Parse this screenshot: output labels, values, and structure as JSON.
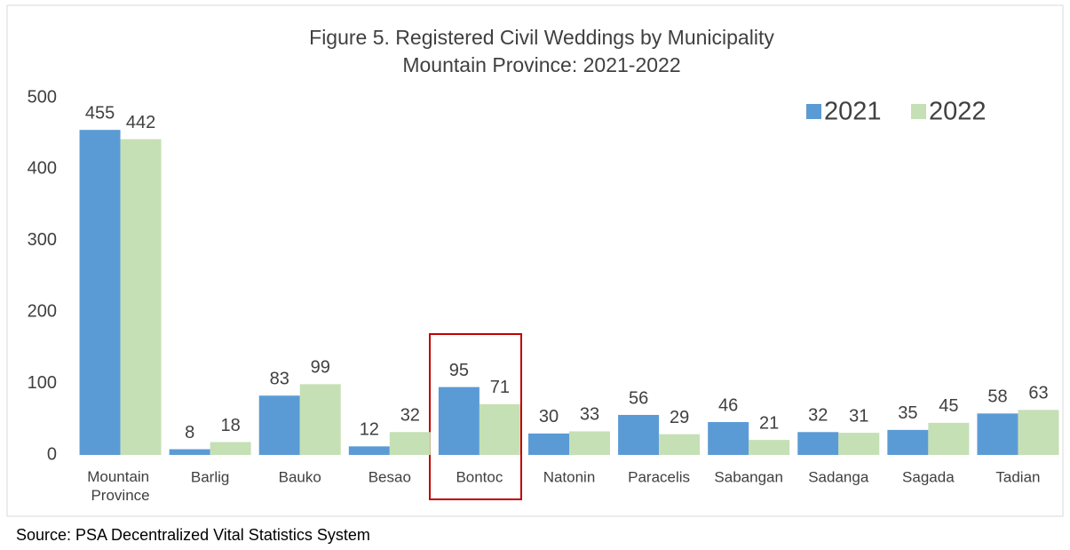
{
  "chart_data": {
    "type": "bar",
    "title": "Figure 5.  Registered Civil Weddings by Municipality",
    "subtitle": "Mountain Province: 2021-2022",
    "categories": [
      "Mountain Province",
      "Barlig",
      "Bauko",
      "Besao",
      "Bontoc",
      "Natonin",
      "Paracelis",
      "Sabangan",
      "Sadanga",
      "Sagada",
      "Tadian"
    ],
    "series": [
      {
        "name": "2021",
        "color": "#5b9bd5",
        "values": [
          455,
          8,
          83,
          12,
          95,
          30,
          56,
          46,
          32,
          35,
          58
        ]
      },
      {
        "name": "2022",
        "color": "#c5e0b4",
        "values": [
          442,
          18,
          99,
          32,
          71,
          33,
          29,
          21,
          31,
          45,
          63
        ]
      }
    ],
    "ylim": [
      0,
      500
    ],
    "yticks": [
      0,
      100,
      200,
      300,
      400,
      500
    ],
    "grid": false,
    "legend": "upper right",
    "source": "Source: PSA Decentralized Vital Statistics System"
  }
}
